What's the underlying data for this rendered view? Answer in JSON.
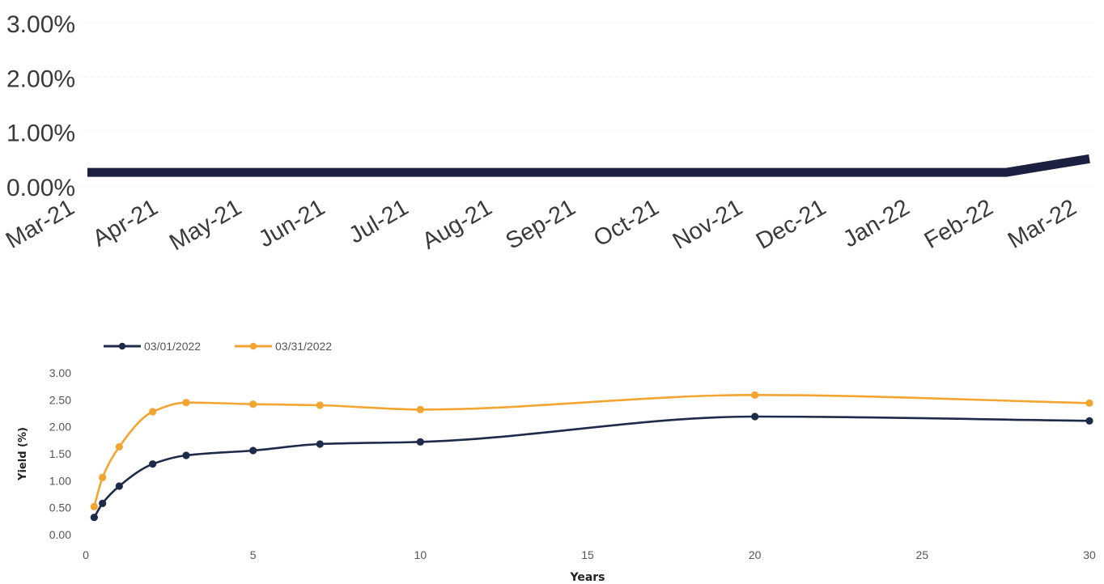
{
  "chart_data": [
    {
      "type": "line",
      "title": "",
      "xlabel": "",
      "ylabel": "",
      "categories": [
        "Mar-21",
        "Apr-21",
        "May-21",
        "Jun-21",
        "Jul-21",
        "Aug-21",
        "Sep-21",
        "Oct-21",
        "Nov-21",
        "Dec-21",
        "Jan-22",
        "Feb-22",
        "Mar-22"
      ],
      "y_ticks": [
        "3.00%",
        "2.00%",
        "1.00%",
        "0.00%"
      ],
      "ylim": [
        0,
        3
      ],
      "grid": true,
      "series": [
        {
          "values": [
            0.25,
            0.25,
            0.25,
            0.25,
            0.25,
            0.25,
            0.25,
            0.25,
            0.25,
            0.25,
            0.25,
            0.25,
            0.5
          ]
        }
      ],
      "colors": {
        "series": "#1c1f3f",
        "grid": "#e6e6e6"
      }
    },
    {
      "type": "line",
      "title": "",
      "xlabel": "Years",
      "ylabel": "Yield (%)",
      "xlim": [
        0,
        30
      ],
      "ylim": [
        0,
        3
      ],
      "x_ticks": [
        "0",
        "5",
        "10",
        "15",
        "20",
        "25",
        "30"
      ],
      "y_ticks": [
        "3.00",
        "2.50",
        "2.00",
        "1.50",
        "1.00",
        "0.50",
        "0.00"
      ],
      "grid": false,
      "legend_position": "top-left",
      "series": [
        {
          "name": "03/01/2022",
          "color": "#1e2a4a",
          "x": [
            0.25,
            0.5,
            1,
            2,
            3,
            5,
            7,
            10,
            20,
            30
          ],
          "y": [
            0.32,
            0.58,
            0.9,
            1.31,
            1.47,
            1.56,
            1.68,
            1.72,
            2.19,
            2.11
          ]
        },
        {
          "name": "03/31/2022",
          "color": "#f2a531",
          "x": [
            0.25,
            0.5,
            1,
            2,
            3,
            5,
            7,
            10,
            20,
            30
          ],
          "y": [
            0.52,
            1.06,
            1.63,
            2.28,
            2.45,
            2.42,
            2.4,
            2.32,
            2.59,
            2.44
          ]
        }
      ]
    }
  ]
}
